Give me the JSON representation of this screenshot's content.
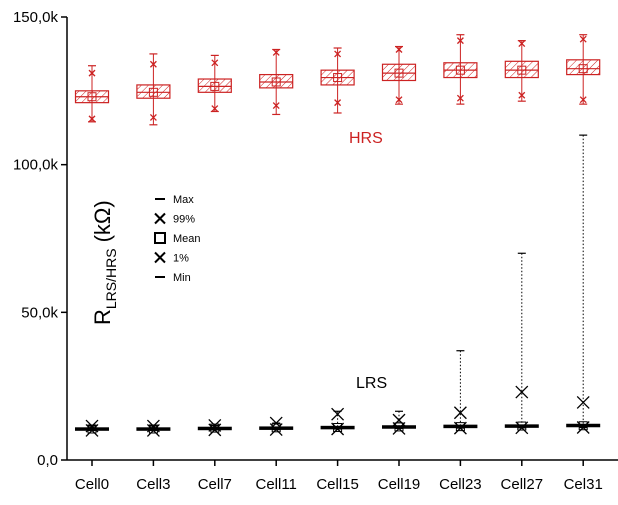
{
  "chart_data": {
    "type": "box",
    "ylabel_main": "R",
    "ylabel_sub": "LRS/HRS",
    "ylabel_unit": "(kΩ)",
    "ylim": [
      0,
      150000
    ],
    "ytick_values": [
      0,
      50000,
      100000,
      150000
    ],
    "ytick_labels": [
      "0,0",
      "50,0k",
      "100,0k",
      "150,0k"
    ],
    "categories": [
      "Cell0",
      "Cell3",
      "Cell7",
      "Cell11",
      "Cell15",
      "Cell19",
      "Cell23",
      "Cell27",
      "Cel31"
    ],
    "annotations": {
      "hrs": "HRS",
      "lrs": "LRS"
    },
    "legend": {
      "items": [
        {
          "symbol": "dash",
          "label": "Max"
        },
        {
          "symbol": "cross",
          "label": "99%"
        },
        {
          "symbol": "square",
          "label": "Mean"
        },
        {
          "symbol": "cross",
          "label": "1%"
        },
        {
          "symbol": "dash",
          "label": "Min"
        }
      ]
    },
    "series": [
      {
        "name": "HRS",
        "color": "#cc2222",
        "hatch": true,
        "boxes": [
          {
            "min": 114500,
            "p1": 115500,
            "q1": 121000,
            "median": 123000,
            "mean": 123000,
            "q3": 125000,
            "p99": 131000,
            "max": 133500
          },
          {
            "min": 113500,
            "p1": 116000,
            "q1": 122500,
            "median": 124500,
            "mean": 124500,
            "q3": 127000,
            "p99": 134000,
            "max": 137500
          },
          {
            "min": 118000,
            "p1": 119000,
            "q1": 124500,
            "median": 126500,
            "mean": 126500,
            "q3": 129000,
            "p99": 134500,
            "max": 137000
          },
          {
            "min": 117000,
            "p1": 120000,
            "q1": 126000,
            "median": 128000,
            "mean": 128000,
            "q3": 130500,
            "p99": 138000,
            "max": 139000
          },
          {
            "min": 117500,
            "p1": 121000,
            "q1": 127000,
            "median": 129500,
            "mean": 129500,
            "q3": 132000,
            "p99": 137500,
            "max": 139500
          },
          {
            "min": 120500,
            "p1": 122000,
            "q1": 128500,
            "median": 131000,
            "mean": 131000,
            "q3": 134000,
            "p99": 139000,
            "max": 140000
          },
          {
            "min": 120500,
            "p1": 122500,
            "q1": 129500,
            "median": 132000,
            "mean": 132000,
            "q3": 134500,
            "p99": 142000,
            "max": 144000
          },
          {
            "min": 121500,
            "p1": 123500,
            "q1": 129500,
            "median": 132000,
            "mean": 132000,
            "q3": 135000,
            "p99": 141000,
            "max": 142000
          },
          {
            "min": 120500,
            "p1": 122000,
            "q1": 130500,
            "median": 132500,
            "mean": 132500,
            "q3": 135500,
            "p99": 142500,
            "max": 144000
          }
        ]
      },
      {
        "name": "LRS",
        "color": "#000000",
        "hatch": false,
        "boxes": [
          {
            "min": 10000,
            "p1": 10000,
            "q1": 10500,
            "median": 10700,
            "mean": 10500,
            "q3": 10900,
            "p99": 11500,
            "max": 11500
          },
          {
            "min": 10000,
            "p1": 10000,
            "q1": 10500,
            "median": 10700,
            "mean": 10500,
            "q3": 10900,
            "p99": 11500,
            "max": 11500
          },
          {
            "min": 10200,
            "p1": 10200,
            "q1": 10700,
            "median": 10900,
            "mean": 10800,
            "q3": 11100,
            "p99": 11700,
            "max": 11700
          },
          {
            "min": 10300,
            "p1": 10300,
            "q1": 10800,
            "median": 11000,
            "mean": 10900,
            "q3": 11200,
            "p99": 12500,
            "max": 12500
          },
          {
            "min": 10500,
            "p1": 10500,
            "q1": 11000,
            "median": 11200,
            "mean": 11000,
            "q3": 11400,
            "p99": 15500,
            "max": 16500
          },
          {
            "min": 10700,
            "p1": 10700,
            "q1": 11200,
            "median": 11400,
            "mean": 11200,
            "q3": 11600,
            "p99": 13500,
            "max": 16500
          },
          {
            "min": 10800,
            "p1": 10800,
            "q1": 11300,
            "median": 11500,
            "mean": 11300,
            "q3": 11800,
            "p99": 16000,
            "max": 37000
          },
          {
            "min": 10900,
            "p1": 10900,
            "q1": 11400,
            "median": 11600,
            "mean": 11500,
            "q3": 11900,
            "p99": 23000,
            "max": 70000
          },
          {
            "min": 11000,
            "p1": 11000,
            "q1": 11500,
            "median": 11700,
            "mean": 11600,
            "q3": 12100,
            "p99": 19500,
            "max": 110000
          }
        ]
      }
    ]
  }
}
